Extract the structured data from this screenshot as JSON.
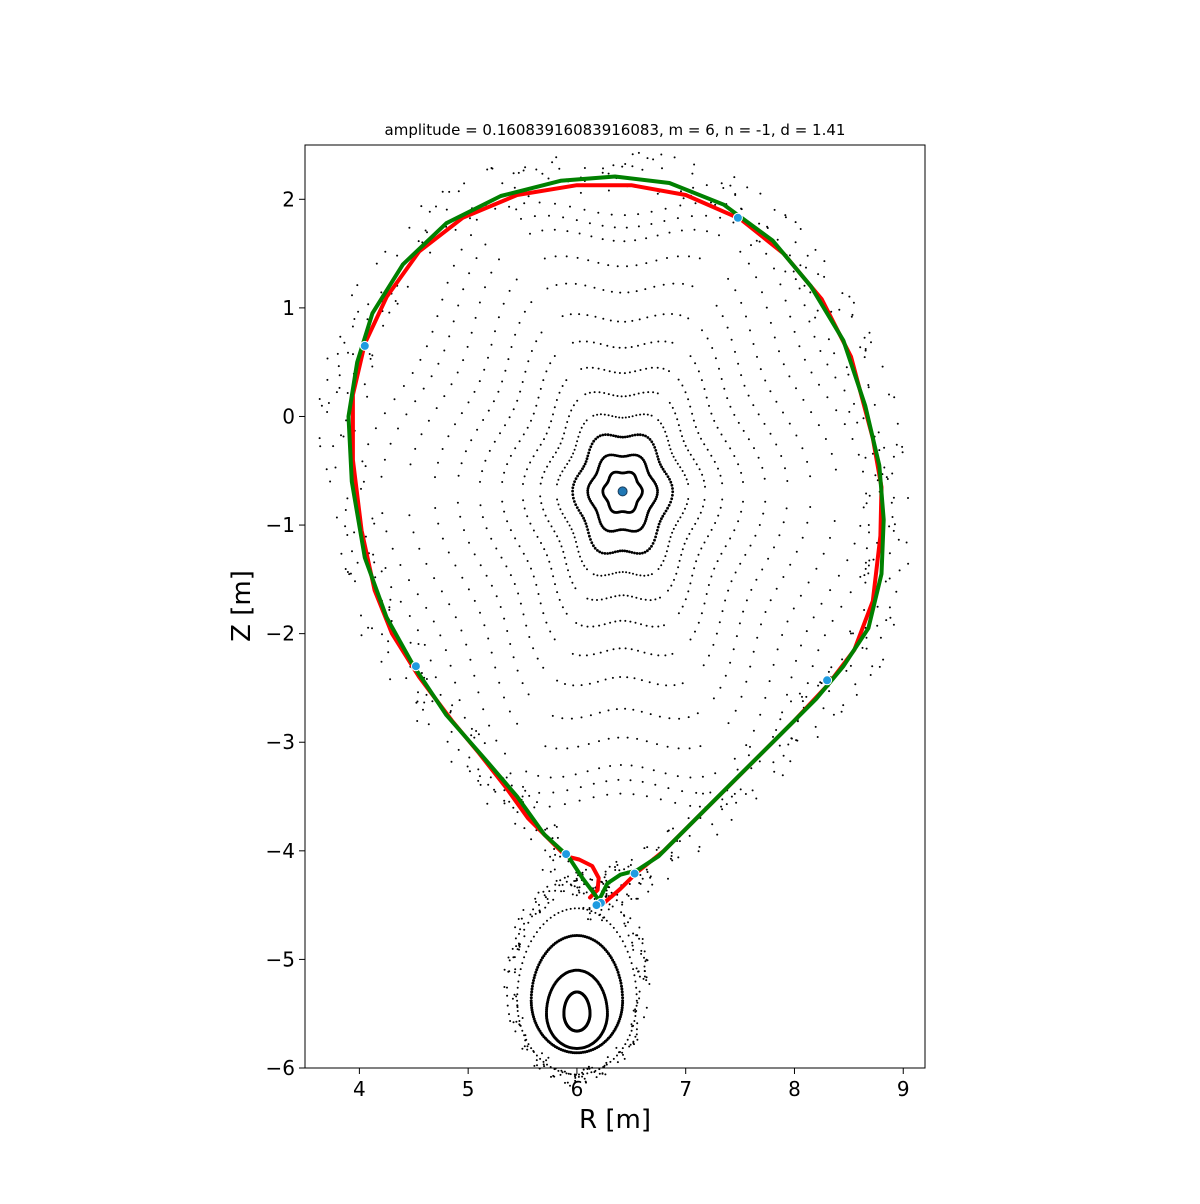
{
  "chart_data": {
    "type": "scatter",
    "title": "amplitude = 0.16083916083916083, m = 6, n = -1, d = 1.41",
    "xlabel": "R [m]",
    "ylabel": "Z [m]",
    "xlim": [
      3.5,
      9.2
    ],
    "ylim": [
      -6.0,
      2.5
    ],
    "xticks": [
      4,
      5,
      6,
      7,
      8,
      9
    ],
    "yticks": [
      -6,
      -5,
      -4,
      -3,
      -2,
      -1,
      0,
      1,
      2
    ],
    "grid": false,
    "legend": "none",
    "magnetic_axis": {
      "R": 6.42,
      "Z": -0.69
    },
    "lower_island_center": {
      "R": 6.0,
      "Z": -5.5
    },
    "nested_surfaces": [
      {
        "a": 0.17,
        "b": 0.19,
        "dense": true
      },
      {
        "a": 0.3,
        "b": 0.36,
        "dense": true
      },
      {
        "a": 0.43,
        "b": 0.56,
        "dense": true
      },
      {
        "a": 0.57,
        "b": 0.76,
        "dense": false
      },
      {
        "a": 0.71,
        "b": 0.98,
        "dense": false
      },
      {
        "a": 0.86,
        "b": 1.22,
        "dense": false
      },
      {
        "a": 1.04,
        "b": 1.48,
        "dense": false
      },
      {
        "a": 1.23,
        "b": 1.75,
        "dense": false
      },
      {
        "a": 1.42,
        "b": 2.05,
        "dense": false
      },
      {
        "a": 1.62,
        "b": 2.32,
        "dense": false
      },
      {
        "a": 1.85,
        "b": 2.58,
        "dense": false
      },
      {
        "a": 2.08,
        "b": 2.72,
        "dense": false
      },
      {
        "a": 2.27,
        "b": 2.85,
        "dense": false
      }
    ],
    "island_surfaces": [
      {
        "a": 0.12,
        "b": 0.16,
        "dense": true
      },
      {
        "a": 0.28,
        "b": 0.32,
        "dense": true
      },
      {
        "a": 0.42,
        "b": 0.48,
        "dense": true
      },
      {
        "a": 0.55,
        "b": 0.68,
        "dense": false
      }
    ],
    "series": [
      {
        "name": "",
        "color": "#ff0000",
        "points": [
          [
            6.12,
            -4.43
          ],
          [
            6.19,
            -4.36
          ],
          [
            6.2,
            -4.25
          ],
          [
            6.14,
            -4.14
          ],
          [
            6.02,
            -4.08
          ],
          [
            5.9,
            -4.05
          ],
          [
            5.75,
            -3.9
          ],
          [
            5.55,
            -3.7
          ],
          [
            5.35,
            -3.42
          ],
          [
            5.1,
            -3.1
          ],
          [
            4.85,
            -2.8
          ],
          [
            4.55,
            -2.4
          ],
          [
            4.3,
            -2.0
          ],
          [
            4.14,
            -1.6
          ],
          [
            4.02,
            -1.05
          ],
          [
            3.94,
            -0.4
          ],
          [
            3.94,
            0.2
          ],
          [
            4.05,
            0.67
          ],
          [
            4.25,
            1.1
          ],
          [
            4.55,
            1.52
          ],
          [
            4.95,
            1.83
          ],
          [
            5.45,
            2.04
          ],
          [
            6.0,
            2.13
          ],
          [
            6.5,
            2.13
          ],
          [
            7.0,
            2.04
          ],
          [
            7.5,
            1.82
          ],
          [
            7.9,
            1.5
          ],
          [
            8.25,
            1.08
          ],
          [
            8.52,
            0.55
          ],
          [
            8.72,
            -0.2
          ],
          [
            8.8,
            -0.65
          ],
          [
            8.79,
            -1.1
          ],
          [
            8.72,
            -1.7
          ],
          [
            8.55,
            -2.15
          ],
          [
            8.3,
            -2.48
          ],
          [
            8.0,
            -2.8
          ],
          [
            7.55,
            -3.25
          ],
          [
            7.1,
            -3.7
          ],
          [
            6.8,
            -4.0
          ],
          [
            6.55,
            -4.2
          ],
          [
            6.4,
            -4.35
          ],
          [
            6.25,
            -4.48
          ]
        ]
      },
      {
        "name": "",
        "color": "#008000",
        "points": [
          [
            6.2,
            -4.45
          ],
          [
            6.05,
            -4.25
          ],
          [
            5.92,
            -4.05
          ],
          [
            5.7,
            -3.85
          ],
          [
            5.45,
            -3.5
          ],
          [
            5.15,
            -3.15
          ],
          [
            4.8,
            -2.75
          ],
          [
            4.5,
            -2.3
          ],
          [
            4.25,
            -1.85
          ],
          [
            4.05,
            -1.3
          ],
          [
            3.93,
            -0.6
          ],
          [
            3.9,
            0.0
          ],
          [
            3.98,
            0.5
          ],
          [
            4.12,
            0.95
          ],
          [
            4.4,
            1.4
          ],
          [
            4.8,
            1.78
          ],
          [
            5.3,
            2.03
          ],
          [
            5.85,
            2.17
          ],
          [
            6.35,
            2.21
          ],
          [
            6.85,
            2.15
          ],
          [
            7.35,
            1.95
          ],
          [
            7.8,
            1.62
          ],
          [
            8.15,
            1.2
          ],
          [
            8.45,
            0.7
          ],
          [
            8.65,
            0.1
          ],
          [
            8.78,
            -0.45
          ],
          [
            8.82,
            -0.95
          ],
          [
            8.8,
            -1.45
          ],
          [
            8.68,
            -1.95
          ],
          [
            8.45,
            -2.3
          ],
          [
            8.2,
            -2.6
          ],
          [
            7.85,
            -2.95
          ],
          [
            7.45,
            -3.35
          ],
          [
            7.05,
            -3.75
          ],
          [
            6.75,
            -4.05
          ],
          [
            6.55,
            -4.18
          ],
          [
            6.4,
            -4.22
          ],
          [
            6.28,
            -4.3
          ],
          [
            6.22,
            -4.42
          ]
        ]
      }
    ],
    "x_points": [
      {
        "R": 5.9,
        "Z": -4.03
      },
      {
        "R": 6.22,
        "Z": -4.48
      },
      {
        "R": 6.53,
        "Z": -4.21
      },
      {
        "R": 4.52,
        "Z": -2.3
      },
      {
        "R": 4.05,
        "Z": 0.65
      },
      {
        "R": 7.48,
        "Z": 1.83
      },
      {
        "R": 8.3,
        "Z": -2.43
      },
      {
        "R": 6.18,
        "Z": -4.5
      }
    ]
  }
}
